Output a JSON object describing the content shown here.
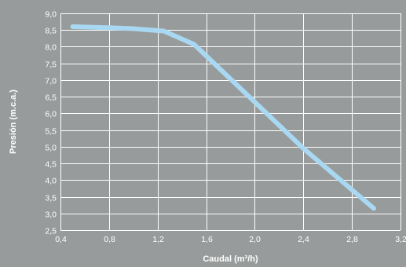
{
  "chart_data": {
    "type": "line",
    "title": "",
    "xlabel": "Caudal (m³/h)",
    "ylabel": "Presión (m.c.a.)",
    "xlim": [
      0.4,
      3.2
    ],
    "ylim": [
      2.5,
      9.0
    ],
    "x_ticks": [
      "0,4",
      "0,8",
      "1,2",
      "1,6",
      "2,0",
      "2,4",
      "2,8",
      "3,2"
    ],
    "y_ticks": [
      "2,5",
      "3,0",
      "3,5",
      "4,0",
      "4,5",
      "5,0",
      "5,5",
      "6,0",
      "6,5",
      "7,0",
      "7,5",
      "8,0",
      "8,5",
      "9,0"
    ],
    "grid": true,
    "background_color": "#989b9b",
    "grid_color": "#ffffff",
    "series": [
      {
        "color": "#a8d8f2",
        "x": [
          0.5,
          0.8,
          1.0,
          1.1,
          1.25,
          1.5,
          2.0,
          2.4,
          2.98
        ],
        "y": [
          8.6,
          8.57,
          8.54,
          8.51,
          8.47,
          8.07,
          6.34,
          4.95,
          3.15
        ]
      }
    ]
  }
}
